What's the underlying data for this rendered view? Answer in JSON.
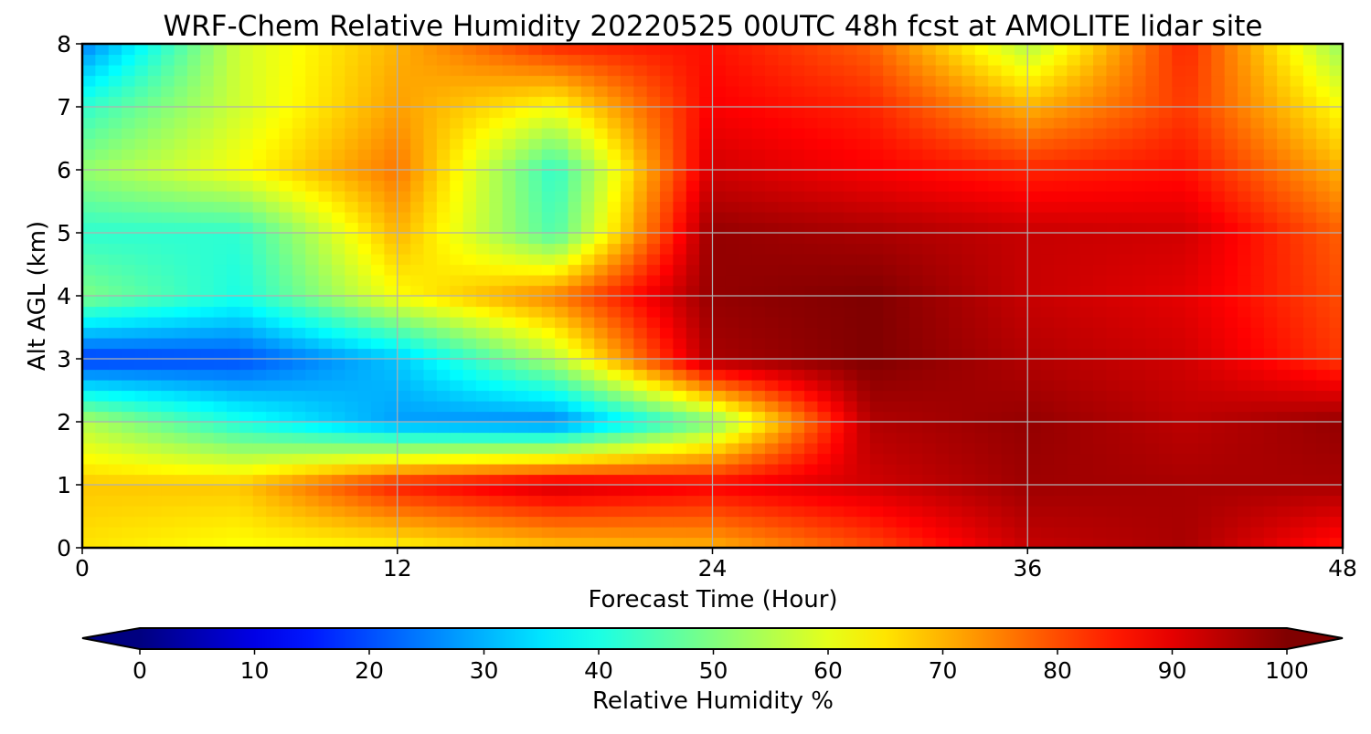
{
  "chart_data": {
    "type": "heatmap",
    "title": "WRF-Chem Relative Humidity 20220525 00UTC 48h fcst at AMOLITE lidar site",
    "xlabel": "Forecast Time (Hour)",
    "ylabel": "Alt AGL (km)",
    "xlim": [
      0,
      48
    ],
    "ylim": [
      0,
      8
    ],
    "x_ticks": [
      "0",
      "12",
      "24",
      "36",
      "48"
    ],
    "y_ticks": [
      "0",
      "1",
      "2",
      "3",
      "4",
      "5",
      "6",
      "7",
      "8"
    ],
    "grid": true,
    "colorbar": {
      "label": "Relative Humidity %",
      "orientation": "horizontal",
      "placement": "bottom",
      "colormap": "jet",
      "range": [
        0,
        100
      ],
      "extend": "both",
      "ticks": [
        "0",
        "10",
        "20",
        "30",
        "40",
        "50",
        "60",
        "70",
        "80",
        "90",
        "100"
      ]
    },
    "x": [
      0,
      6,
      12,
      18,
      24,
      30,
      36,
      42,
      48
    ],
    "y": [
      0,
      1,
      2,
      3,
      4,
      5,
      6,
      7,
      8
    ],
    "z_rows_by_altitude": [
      [
        65,
        62,
        63,
        68,
        70,
        80,
        93,
        96,
        85
      ],
      [
        68,
        68,
        85,
        92,
        88,
        92,
        97,
        96,
        96
      ],
      [
        55,
        40,
        28,
        25,
        50,
        95,
        98,
        94,
        98
      ],
      [
        18,
        20,
        32,
        55,
        96,
        100,
        95,
        92,
        82
      ],
      [
        50,
        40,
        62,
        75,
        98,
        100,
        93,
        90,
        80
      ],
      [
        42,
        42,
        70,
        45,
        98,
        96,
        93,
        92,
        78
      ],
      [
        52,
        62,
        76,
        42,
        92,
        88,
        84,
        86,
        70
      ],
      [
        42,
        58,
        72,
        62,
        88,
        84,
        70,
        82,
        62
      ],
      [
        25,
        58,
        70,
        84,
        86,
        78,
        55,
        84,
        52
      ]
    ]
  }
}
